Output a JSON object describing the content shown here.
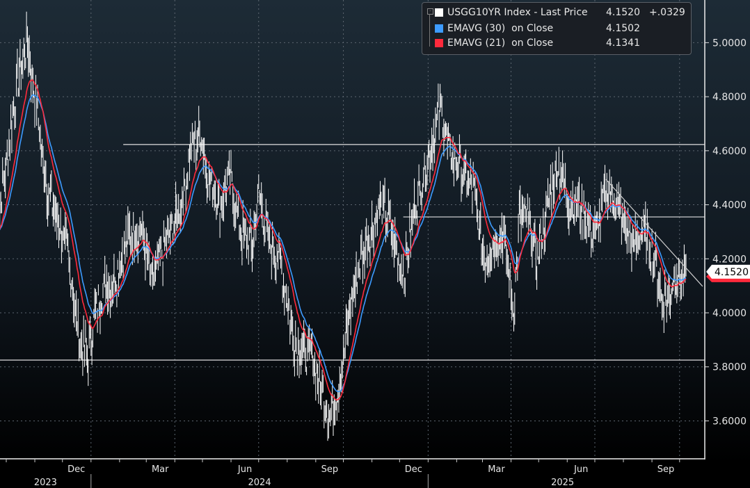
{
  "chart_data": {
    "type": "line",
    "title": "",
    "xlabel": "",
    "ylabel": "",
    "ylim": [
      3.45,
      5.16
    ],
    "yticks": [
      "3.6000",
      "3.8000",
      "4.0000",
      "4.2000",
      "4.4000",
      "4.6000",
      "4.8000",
      "5.0000"
    ],
    "ytick_values": [
      3.6,
      3.8,
      4.0,
      4.2,
      4.4,
      4.6,
      4.8,
      5.0
    ],
    "xtick_months": [
      "Dec",
      "Mar",
      "Jun",
      "Sep",
      "Dec",
      "Mar",
      "Jun",
      "Sep"
    ],
    "xtick_month_dates": [
      "2023-12-01",
      "2024-03-01",
      "2024-06-01",
      "2024-09-01",
      "2024-12-01",
      "2025-03-01",
      "2025-06-01",
      "2025-09-01"
    ],
    "years": [
      {
        "label": "2023",
        "start": "2023-09-20",
        "end": "2024-01-01"
      },
      {
        "label": "2024",
        "start": "2024-01-01",
        "end": "2025-01-01"
      },
      {
        "label": "2025",
        "start": "2025-01-01",
        "end": "2025-10-20"
      }
    ],
    "grid": true,
    "legend_position": "top-right",
    "legend": [
      {
        "name": "USGG10YR Index - Last Price",
        "value": "4.1520",
        "change": "+.0329",
        "color": "#ffffff"
      },
      {
        "name": "EMAVG (30)  on Close",
        "value": "4.1502",
        "change": "",
        "color": "#3d9bff",
        "period": 30
      },
      {
        "name": "EMAVG (21)  on Close",
        "value": "4.1341",
        "change": "",
        "color": "#ff2a3c",
        "period": 21
      }
    ],
    "last_price_label": "4.1520",
    "series": [
      {
        "name": "USGG10YR Index",
        "points": [
          [
            "2023-09-20",
            4.3
          ],
          [
            "2023-10-01",
            4.55
          ],
          [
            "2023-10-13",
            4.85
          ],
          [
            "2023-10-24",
            5.0
          ],
          [
            "2023-11-01",
            4.8
          ],
          [
            "2023-11-15",
            4.45
          ],
          [
            "2023-11-30",
            4.3
          ],
          [
            "2023-12-08",
            4.2
          ],
          [
            "2023-12-19",
            3.9
          ],
          [
            "2023-12-29",
            3.85
          ],
          [
            "2024-01-05",
            4.0
          ],
          [
            "2024-01-16",
            4.1
          ],
          [
            "2024-01-26",
            4.12
          ],
          [
            "2024-02-12",
            4.3
          ],
          [
            "2024-02-26",
            4.3
          ],
          [
            "2024-03-07",
            4.1
          ],
          [
            "2024-03-21",
            4.25
          ],
          [
            "2024-04-08",
            4.4
          ],
          [
            "2024-04-19",
            4.62
          ],
          [
            "2024-04-30",
            4.65
          ],
          [
            "2024-05-08",
            4.5
          ],
          [
            "2024-05-20",
            4.4
          ],
          [
            "2024-05-31",
            4.5
          ],
          [
            "2024-06-12",
            4.3
          ],
          [
            "2024-06-24",
            4.25
          ],
          [
            "2024-07-01",
            4.45
          ],
          [
            "2024-07-12",
            4.25
          ],
          [
            "2024-07-23",
            4.22
          ],
          [
            "2024-08-01",
            4.05
          ],
          [
            "2024-08-09",
            3.9
          ],
          [
            "2024-08-20",
            3.85
          ],
          [
            "2024-08-28",
            3.85
          ],
          [
            "2024-09-06",
            3.72
          ],
          [
            "2024-09-17",
            3.62
          ],
          [
            "2024-09-27",
            3.75
          ],
          [
            "2024-10-08",
            4.0
          ],
          [
            "2024-10-20",
            4.2
          ],
          [
            "2024-10-31",
            4.3
          ],
          [
            "2024-11-11",
            4.4
          ],
          [
            "2024-11-19",
            4.35
          ],
          [
            "2024-11-29",
            4.2
          ],
          [
            "2024-12-06",
            4.15
          ],
          [
            "2024-12-18",
            4.4
          ],
          [
            "2024-12-31",
            4.55
          ],
          [
            "2025-01-10",
            4.7
          ],
          [
            "2025-01-15",
            4.75
          ],
          [
            "2025-01-24",
            4.6
          ],
          [
            "2025-02-01",
            4.55
          ],
          [
            "2025-02-12",
            4.5
          ],
          [
            "2025-02-20",
            4.45
          ],
          [
            "2025-03-03",
            4.2
          ],
          [
            "2025-03-12",
            4.25
          ],
          [
            "2025-03-24",
            4.3
          ],
          [
            "2025-04-04",
            4.0
          ],
          [
            "2025-04-10",
            4.35
          ],
          [
            "2025-04-19",
            4.35
          ],
          [
            "2025-04-30",
            4.2
          ],
          [
            "2025-05-14",
            4.45
          ],
          [
            "2025-05-22",
            4.55
          ],
          [
            "2025-06-03",
            4.4
          ],
          [
            "2025-06-15",
            4.4
          ],
          [
            "2025-06-26",
            4.3
          ],
          [
            "2025-07-03",
            4.3
          ],
          [
            "2025-07-11",
            4.42
          ],
          [
            "2025-07-16",
            4.45
          ],
          [
            "2025-07-31",
            4.35
          ],
          [
            "2025-08-12",
            4.25
          ],
          [
            "2025-08-23",
            4.3
          ],
          [
            "2025-09-04",
            4.2
          ],
          [
            "2025-09-12",
            4.05
          ],
          [
            "2025-09-19",
            4.05
          ],
          [
            "2025-09-26",
            4.15
          ],
          [
            "2025-10-03",
            4.12
          ],
          [
            "2025-10-08",
            4.152
          ]
        ]
      }
    ],
    "horizontal_lines": [
      {
        "value": 4.623,
        "from": "2024-02-05"
      },
      {
        "value": 4.355,
        "from": "2024-12-05"
      },
      {
        "value": 3.825,
        "from": "2023-09-20"
      }
    ],
    "trend_line": {
      "from": [
        "2025-07-13",
        4.494
      ],
      "to": [
        "2025-10-26",
        4.098
      ]
    }
  }
}
